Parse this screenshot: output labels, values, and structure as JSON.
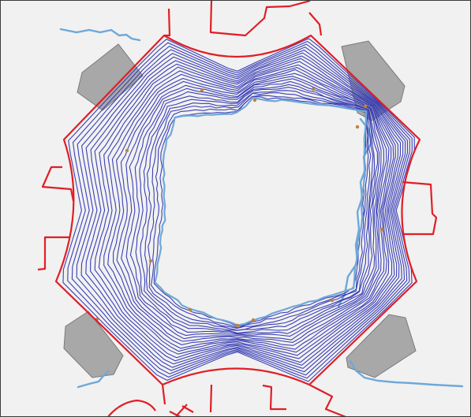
{
  "scene": {
    "background": "#f1f1f1",
    "colors": {
      "contour": "#3a3fb5",
      "outline": "#e01e26",
      "fragment": "#6fa8d8",
      "block": "#a8a8a8",
      "blockEdge": "#7a7a7a",
      "speck": "#c08040"
    },
    "contour_count": 22,
    "icons": [
      "cross-section-outline",
      "contour-lines",
      "scan-fragments",
      "support-blocks"
    ]
  }
}
